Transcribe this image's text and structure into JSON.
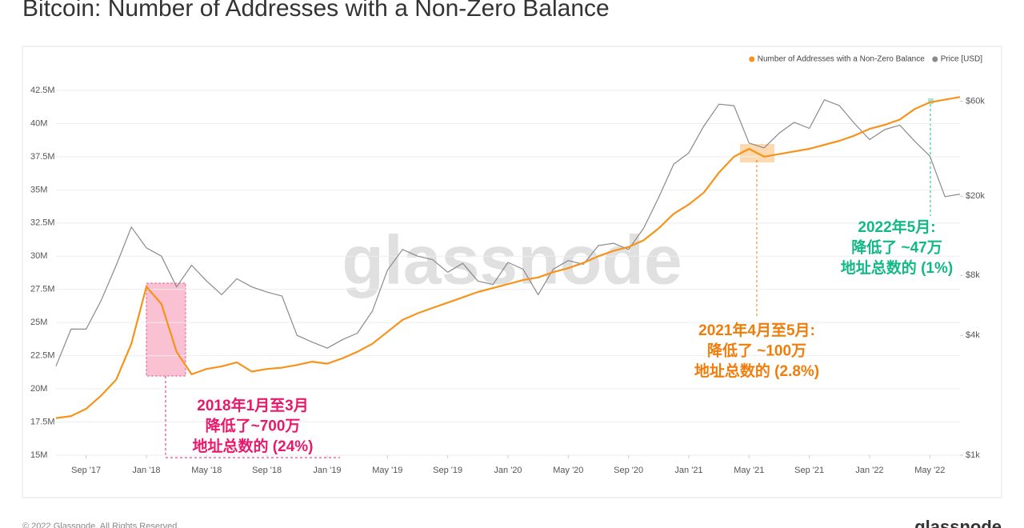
{
  "chart_data": {
    "type": "line",
    "title": "Bitcoin: Number of Addresses with a Non-Zero Balance",
    "footer": "© 2022 Glassnode. All Rights Reserved.",
    "logo": "glassnode",
    "watermark": "glassnode",
    "legend_position": "top-right",
    "grid": true,
    "y2_log": true,
    "x": [
      "2017-07",
      "2017-08",
      "2017-09",
      "2017-10",
      "2017-11",
      "2017-12",
      "2018-01",
      "2018-02",
      "2018-03",
      "2018-04",
      "2018-05",
      "2018-06",
      "2018-07",
      "2018-08",
      "2018-09",
      "2018-10",
      "2018-11",
      "2018-12",
      "2019-01",
      "2019-02",
      "2019-03",
      "2019-04",
      "2019-05",
      "2019-06",
      "2019-07",
      "2019-08",
      "2019-09",
      "2019-10",
      "2019-11",
      "2019-12",
      "2020-01",
      "2020-02",
      "2020-03",
      "2020-04",
      "2020-05",
      "2020-06",
      "2020-07",
      "2020-08",
      "2020-09",
      "2020-10",
      "2020-11",
      "2020-12",
      "2021-01",
      "2021-02",
      "2021-03",
      "2021-04",
      "2021-05",
      "2021-06",
      "2021-07",
      "2021-08",
      "2021-09",
      "2021-10",
      "2021-11",
      "2021-12",
      "2022-01",
      "2022-02",
      "2022-03",
      "2022-04",
      "2022-05",
      "2022-06",
      "2022-07"
    ],
    "xlim": [
      "2017-07",
      "2022-07"
    ],
    "xticks": [
      {
        "value": "2017-09",
        "label": "Sep '17"
      },
      {
        "value": "2018-01",
        "label": "Jan '18"
      },
      {
        "value": "2018-05",
        "label": "May '18"
      },
      {
        "value": "2018-09",
        "label": "Sep '18"
      },
      {
        "value": "2019-01",
        "label": "Jan '19"
      },
      {
        "value": "2019-05",
        "label": "May '19"
      },
      {
        "value": "2019-09",
        "label": "Sep '19"
      },
      {
        "value": "2020-01",
        "label": "Jan '20"
      },
      {
        "value": "2020-05",
        "label": "May '20"
      },
      {
        "value": "2020-09",
        "label": "Sep '20"
      },
      {
        "value": "2021-01",
        "label": "Jan '21"
      },
      {
        "value": "2021-05",
        "label": "May '21"
      },
      {
        "value": "2021-09",
        "label": "Sep '21"
      },
      {
        "value": "2022-01",
        "label": "Jan '22"
      },
      {
        "value": "2022-05",
        "label": "May '22"
      }
    ],
    "ylim": [
      15,
      42.5
    ],
    "yticks": [
      {
        "value": 15,
        "label": "15M"
      },
      {
        "value": 17.5,
        "label": "17.5M"
      },
      {
        "value": 20,
        "label": "20M"
      },
      {
        "value": 22.5,
        "label": "22.5M"
      },
      {
        "value": 25,
        "label": "25M"
      },
      {
        "value": 27.5,
        "label": "27.5M"
      },
      {
        "value": 30,
        "label": "30M"
      },
      {
        "value": 32.5,
        "label": "32.5M"
      },
      {
        "value": 35,
        "label": "35M"
      },
      {
        "value": 37.5,
        "label": "37.5M"
      },
      {
        "value": 40,
        "label": "40M"
      },
      {
        "value": 42.5,
        "label": "42.5M"
      }
    ],
    "y2lim": [
      1000,
      68000
    ],
    "y2ticks": [
      {
        "value": 1000,
        "label": "$1k"
      },
      {
        "value": 4000,
        "label": "$4k"
      },
      {
        "value": 8000,
        "label": "$8k"
      },
      {
        "value": 20000,
        "label": "$20k"
      },
      {
        "value": 60000,
        "label": "$60k"
      }
    ],
    "series": [
      {
        "name": "Number of Addresses with a Non-Zero Balance",
        "color": "#f7931a",
        "values": [
          17.8,
          17.95,
          18.5,
          19.5,
          20.7,
          23.4,
          27.7,
          26.4,
          22.8,
          21.1,
          21.5,
          21.7,
          22.0,
          21.3,
          21.5,
          21.6,
          21.8,
          22.05,
          21.9,
          22.3,
          22.8,
          23.4,
          24.3,
          25.2,
          25.7,
          26.1,
          26.5,
          26.9,
          27.3,
          27.6,
          27.9,
          28.2,
          28.4,
          28.8,
          29.1,
          29.5,
          30.0,
          30.4,
          30.7,
          31.2,
          32.1,
          33.2,
          33.9,
          34.8,
          36.3,
          37.5,
          38.1,
          37.5,
          37.7,
          37.9,
          38.1,
          38.4,
          38.7,
          39.1,
          39.6,
          39.9,
          40.3,
          41.1,
          41.6,
          41.8,
          42.0
        ]
      },
      {
        "name": "Price [USD]",
        "color": "#8a8a8a",
        "axis": "y2",
        "values": [
          2800,
          4300,
          4300,
          6000,
          9000,
          14000,
          11000,
          10000,
          7000,
          9000,
          7500,
          6400,
          7700,
          7000,
          6600,
          6300,
          4000,
          3700,
          3450,
          3800,
          4100,
          5300,
          8500,
          10800,
          10000,
          9600,
          8300,
          9200,
          7500,
          7200,
          9300,
          8600,
          6400,
          8600,
          9500,
          9100,
          11300,
          11600,
          10800,
          13800,
          19700,
          29000,
          33000,
          45000,
          58000,
          57000,
          37000,
          35000,
          41500,
          47000,
          43800,
          61000,
          57000,
          46300,
          38500,
          43200,
          45500,
          37700,
          31800,
          19900,
          20500
        ]
      }
    ],
    "annotations": [
      {
        "color": "#e8196c",
        "lines": [
          "2018年1月至3月",
          "降低了~700万",
          "地址总数的 (24%)"
        ]
      },
      {
        "color": "#f07d0a",
        "lines": [
          "2021年4月至5月:",
          "降低了 ~100万",
          "地址总数的 (2.8%)"
        ]
      },
      {
        "color": "#12b886",
        "lines": [
          "2022年5月:",
          "降低了 ~47万",
          "地址总数的 (1%)"
        ]
      }
    ]
  }
}
